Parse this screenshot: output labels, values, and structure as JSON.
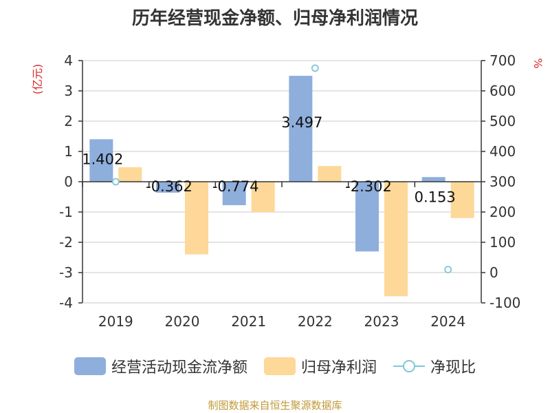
{
  "chart_data": {
    "type": "bar",
    "title": "历年经营现金净额、归母净利润情况",
    "categories": [
      "2019",
      "2020",
      "2021",
      "2022",
      "2023",
      "2024"
    ],
    "left_axis": {
      "unit": "(亿元)",
      "ylim": [
        -4,
        4
      ],
      "ticks": [
        "4",
        "3",
        "2",
        "1",
        "0",
        "-1",
        "-2",
        "-3",
        "-4"
      ]
    },
    "right_axis": {
      "unit": "%",
      "ylim": [
        -100,
        700
      ],
      "ticks": [
        "700",
        "600",
        "500",
        "400",
        "300",
        "200",
        "100",
        "0",
        "-100"
      ]
    },
    "series": [
      {
        "name": "经营活动现金流净额",
        "type": "bar",
        "axis": "left",
        "color": "#8eaedc",
        "values": [
          1.402,
          -0.362,
          -0.774,
          3.497,
          -2.302,
          0.153
        ],
        "labels": [
          "1.402",
          "-0.362",
          "-0.774",
          "3.497",
          "-2.302",
          "0.153"
        ]
      },
      {
        "name": "归母净利润",
        "type": "bar",
        "axis": "left",
        "color": "#fdd898",
        "values": [
          0.48,
          -2.4,
          -1.0,
          0.52,
          -3.78,
          -1.2
        ]
      },
      {
        "name": "净现比",
        "type": "scatter",
        "axis": "right",
        "color": "#7fc6d9",
        "values": [
          300,
          null,
          null,
          675,
          null,
          10
        ]
      }
    ],
    "grid": true,
    "legend_position": "bottom",
    "source": "制图数据来自恒生聚源数据库"
  }
}
